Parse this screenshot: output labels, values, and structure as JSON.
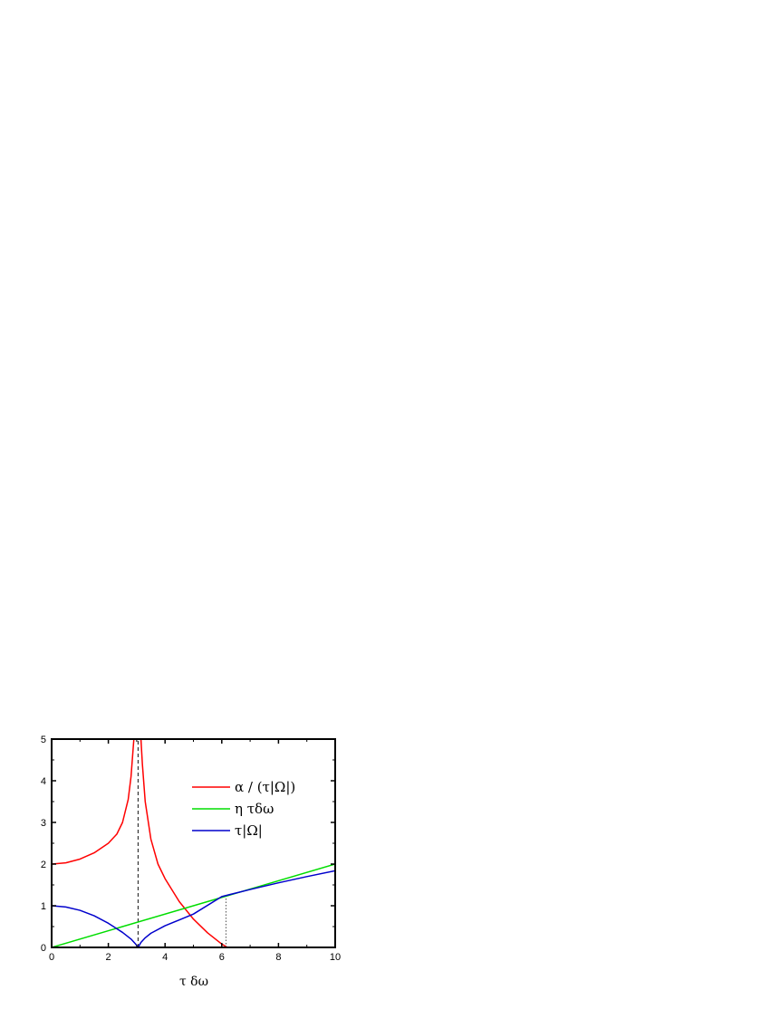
{
  "chart_data": {
    "type": "line",
    "xlabel": "τ δω",
    "ylabel": "",
    "xlim": [
      0,
      10
    ],
    "ylim": [
      0,
      5
    ],
    "x_ticks": [
      0,
      2,
      4,
      6,
      8,
      10
    ],
    "y_ticks": [
      0,
      1,
      2,
      3,
      4,
      5
    ],
    "grid": false,
    "legend_position": "top-right",
    "series": [
      {
        "name": "α / (τ|Ω|)",
        "color": "#ff0000",
        "x": [
          0,
          0.5,
          1.0,
          1.5,
          2.0,
          2.3,
          2.5,
          2.7,
          2.8,
          2.9,
          2.95,
          3.0
        ],
        "y": [
          2.0,
          2.03,
          2.12,
          2.27,
          2.5,
          2.72,
          3.0,
          3.55,
          4.1,
          5.0,
          5.0,
          5.0
        ],
        "segment2": {
          "x": [
            3.15,
            3.2,
            3.3,
            3.5,
            3.75,
            4.0,
            4.5,
            5.0,
            5.5,
            6.0,
            6.2,
            7.0,
            8.0,
            9.0,
            10.0
          ],
          "y": [
            5.0,
            4.4,
            3.5,
            2.6,
            2.0,
            1.65,
            1.1,
            0.68,
            0.35,
            0.08,
            0.0,
            0.0,
            0.0,
            0.0,
            0.0
          ]
        }
      },
      {
        "name": "η τδω",
        "color": "#00dd00",
        "x": [
          0,
          10
        ],
        "y": [
          0,
          2.0
        ]
      },
      {
        "name": "τ|Ω|",
        "color": "#0000cc",
        "x": [
          0,
          0.5,
          1.0,
          1.5,
          2.0,
          2.5,
          2.8,
          2.95,
          3.05,
          3.15,
          3.3,
          3.5,
          4.0,
          4.5,
          5.0,
          6.0,
          7.0,
          8.0,
          9.0,
          10.0
        ],
        "y": [
          1.0,
          0.97,
          0.89,
          0.76,
          0.58,
          0.36,
          0.2,
          0.09,
          0.0,
          0.12,
          0.23,
          0.34,
          0.52,
          0.66,
          0.8,
          1.22,
          1.39,
          1.55,
          1.7,
          1.84
        ]
      }
    ],
    "reference_lines": [
      {
        "style": "dashed",
        "x": 3.05,
        "y_from": 0,
        "y_to": 5
      },
      {
        "style": "dotted",
        "x": 6.15,
        "y_from": 0,
        "y_to": 1.22
      }
    ]
  }
}
